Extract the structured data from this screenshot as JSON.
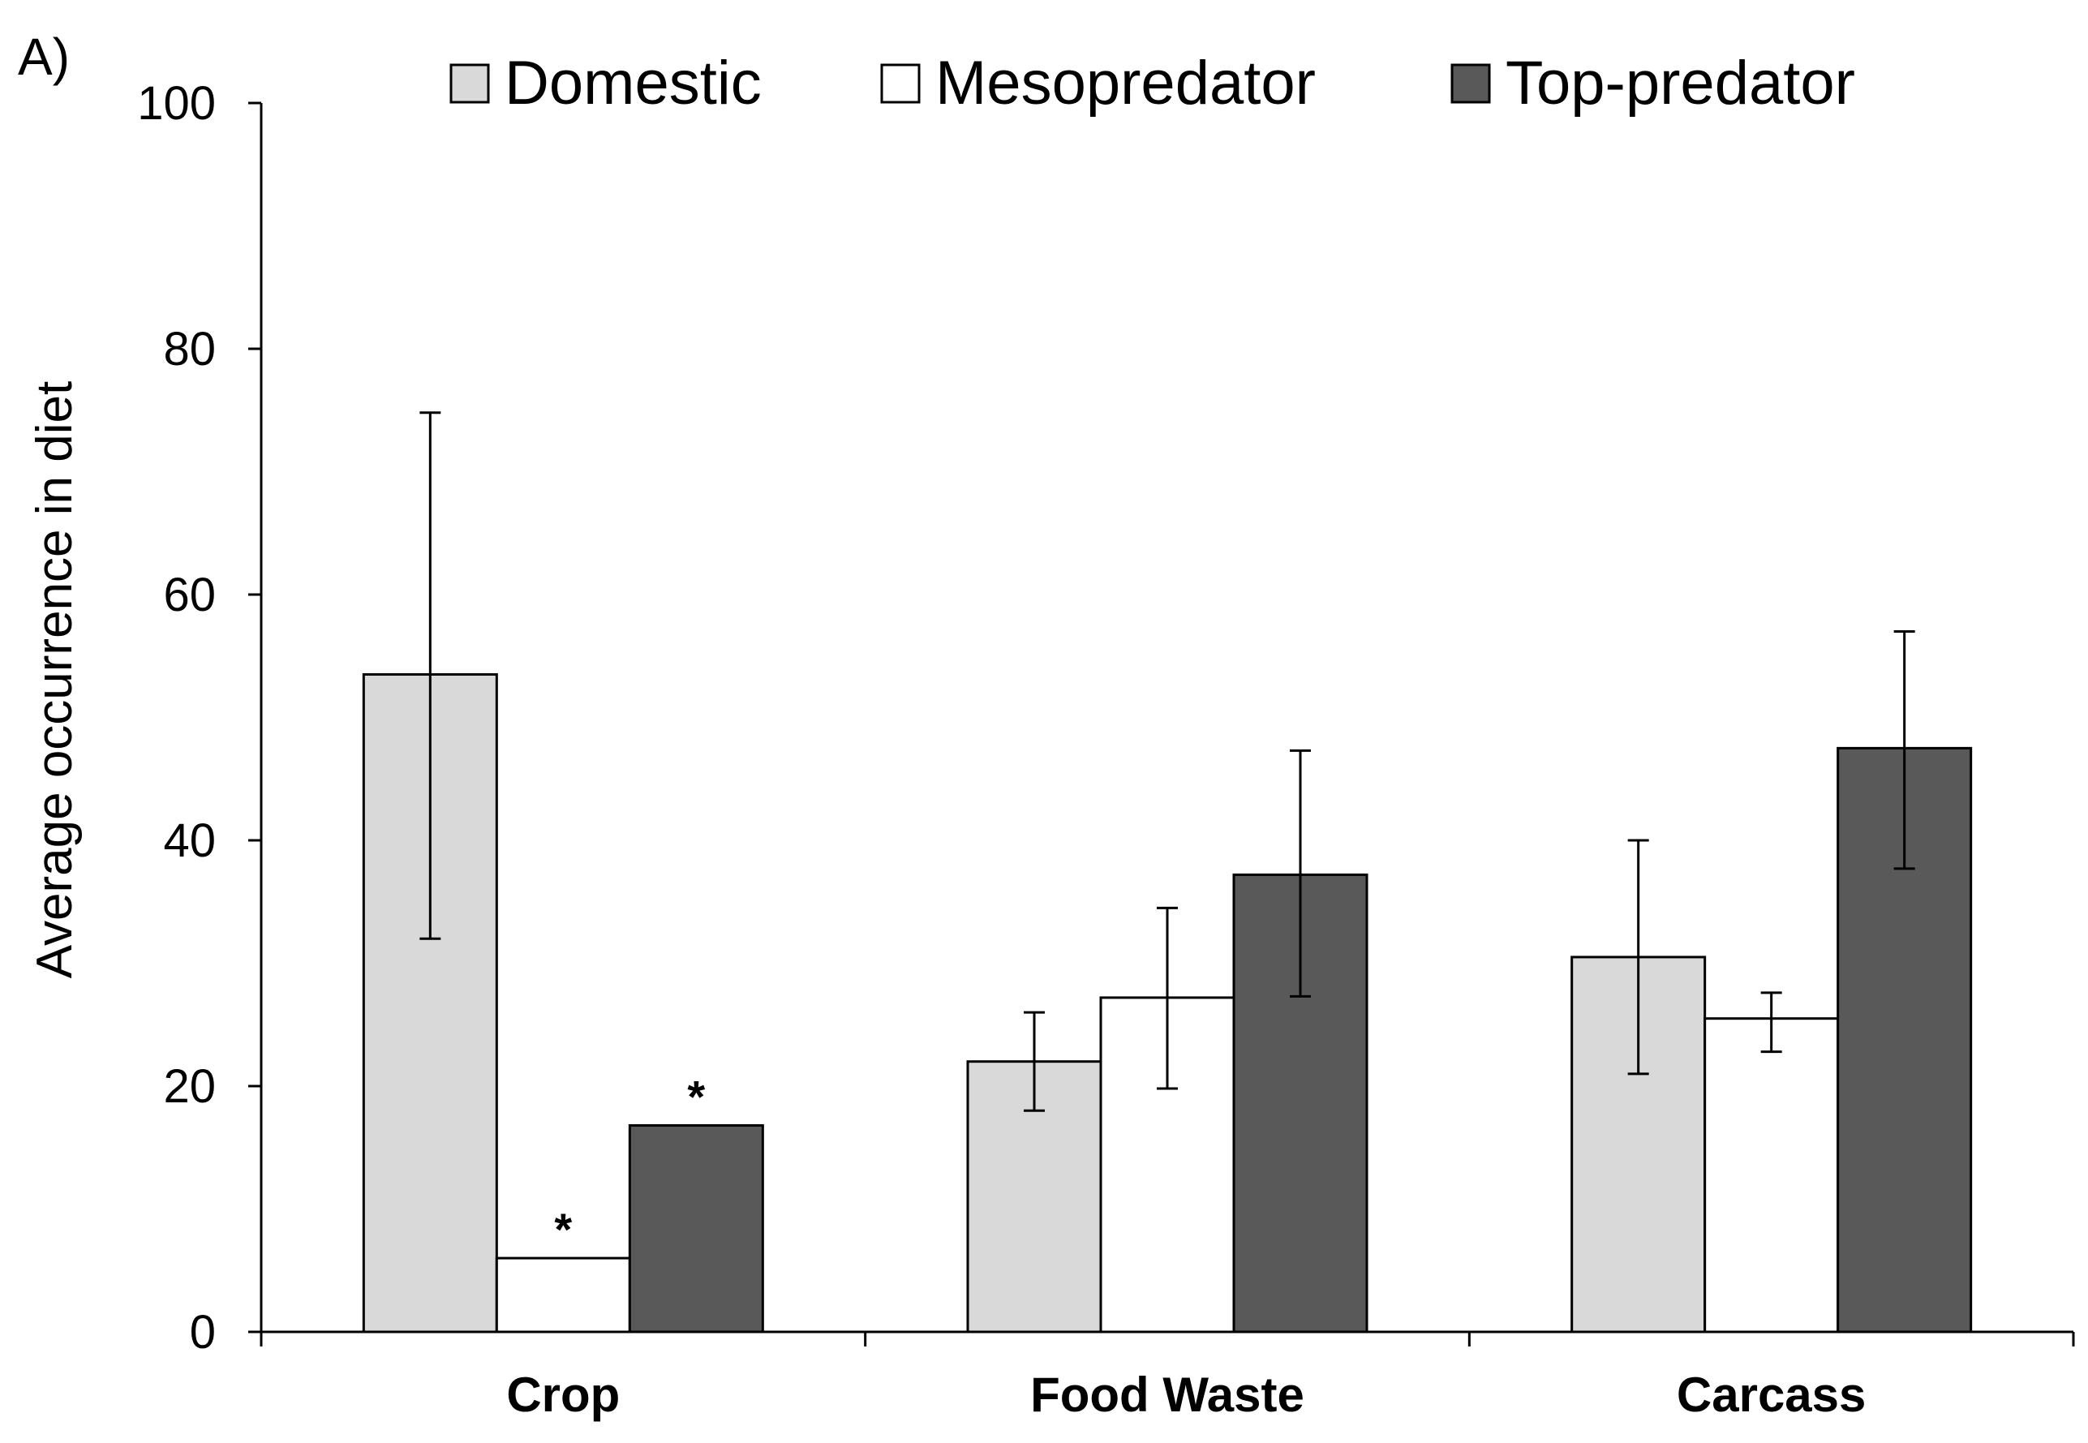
{
  "panel_label": "A)",
  "colors": {
    "Domestic": "#d9d9d9",
    "Mesopredator": "#ffffff",
    "Top-predator": "#595959"
  },
  "chart_data": {
    "type": "bar",
    "title": "",
    "xlabel": "",
    "ylabel": "Average occurrence in diet",
    "ylim": [
      0,
      100
    ],
    "yticks": [
      0,
      20,
      40,
      60,
      80,
      100
    ],
    "categories": [
      "Crop",
      "Food Waste",
      "Carcass"
    ],
    "legend_position": "top",
    "grid": false,
    "series": [
      {
        "name": "Domestic",
        "values": [
          53.5,
          22,
          30.5
        ],
        "err_low": [
          32,
          18,
          21
        ],
        "err_high": [
          74.8,
          26,
          40
        ],
        "annotations": [
          "",
          "",
          ""
        ]
      },
      {
        "name": "Mesopredator",
        "values": [
          6,
          27.2,
          25.5
        ],
        "err_low": [
          null,
          19.8,
          22.8
        ],
        "err_high": [
          null,
          34.5,
          27.6
        ],
        "annotations": [
          "*",
          "",
          ""
        ]
      },
      {
        "name": "Top-predator",
        "values": [
          16.8,
          37.2,
          47.5
        ],
        "err_low": [
          null,
          27.3,
          37.7
        ],
        "err_high": [
          null,
          47.3,
          57
        ],
        "annotations": [
          "*",
          "",
          ""
        ]
      }
    ]
  }
}
